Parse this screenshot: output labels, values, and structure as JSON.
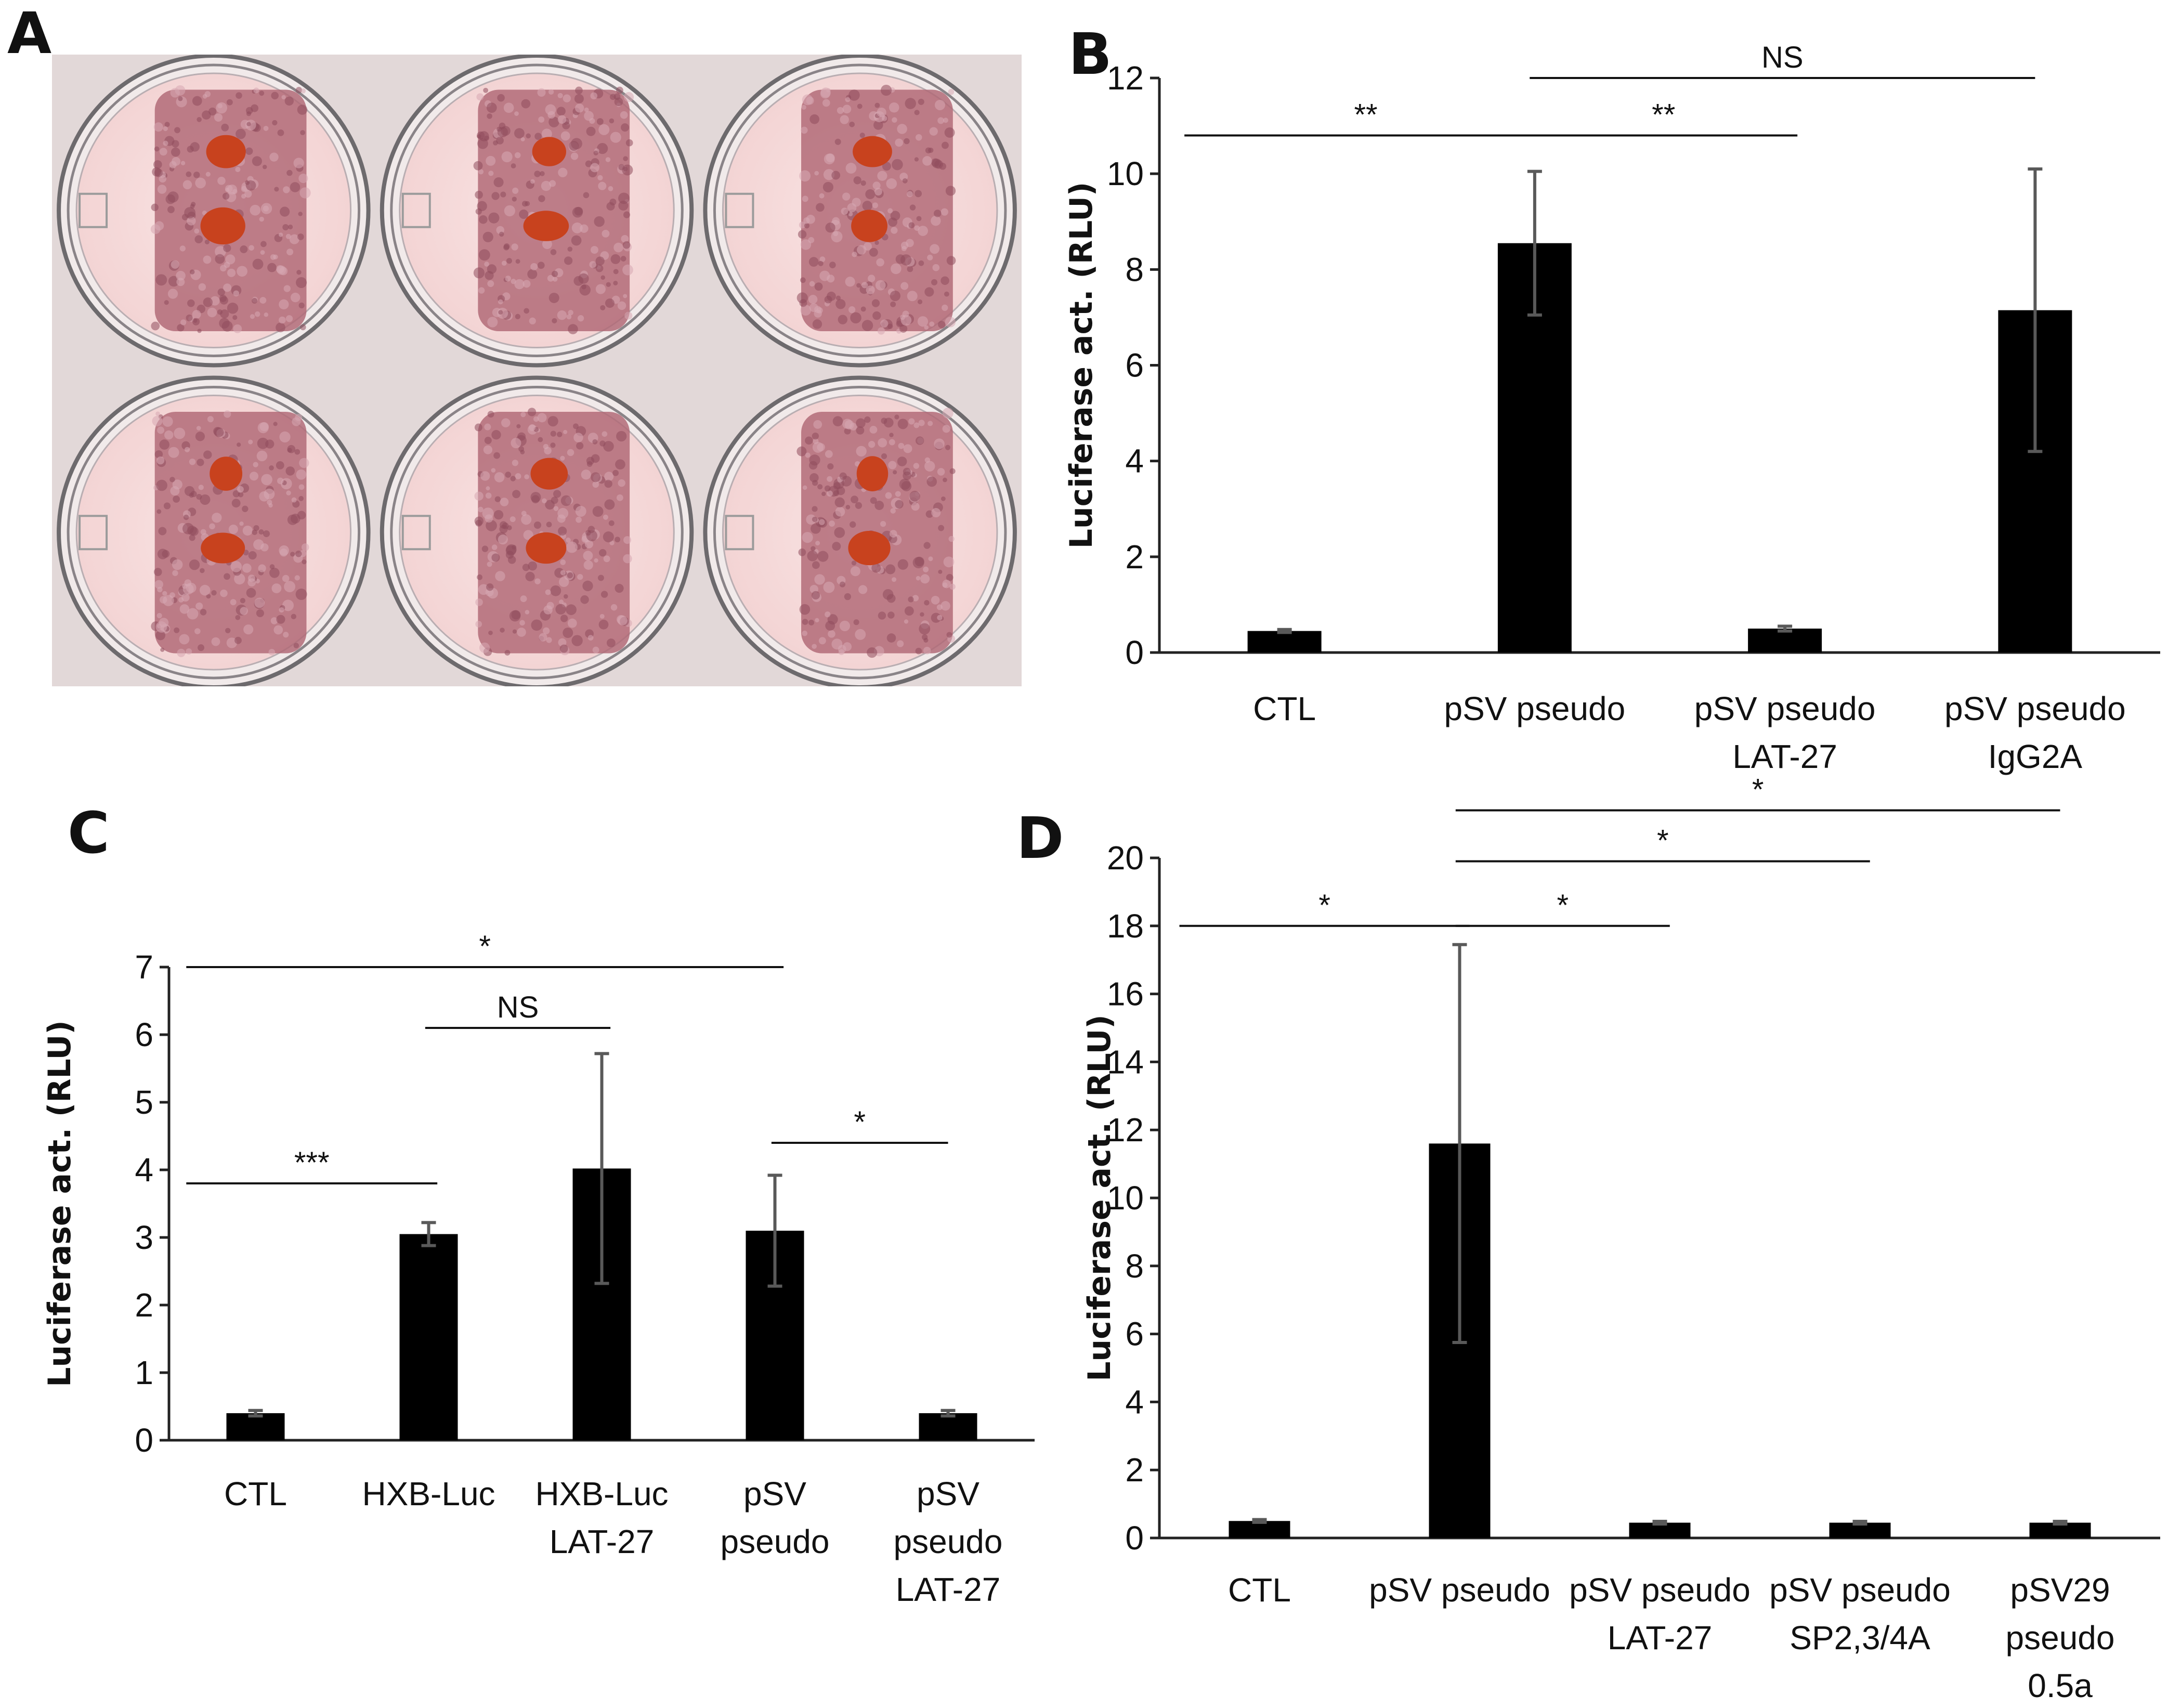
{
  "panels": {
    "A": {
      "letter": "A"
    },
    "B": {
      "letter": "B"
    },
    "C": {
      "letter": "C"
    },
    "D": {
      "letter": "D"
    }
  },
  "plate": {
    "rows": 2,
    "cols": 3,
    "colors": {
      "background": "#e2d8d8",
      "medium": "#f3d4d4",
      "cells": "#b06674",
      "pellet": "#c8421e",
      "rim": "#6d6a6d"
    }
  },
  "chart_data": [
    {
      "panel": "B",
      "type": "bar",
      "ylabel": "Luciferase act. (RLU)",
      "ylim": [
        0,
        12
      ],
      "yticks": [
        0,
        2,
        4,
        6,
        8,
        10,
        12
      ],
      "categories": [
        [
          "CTL"
        ],
        [
          "pSV pseudo"
        ],
        [
          "pSV pseudo",
          "LAT-27"
        ],
        [
          "pSV pseudo",
          "IgG2A"
        ]
      ],
      "values": [
        0.45,
        8.55,
        0.5,
        7.15
      ],
      "errors": [
        0.03,
        1.5,
        0.05,
        2.95
      ],
      "significance": [
        {
          "from": 0,
          "to": 1,
          "label": "**",
          "level": 10.8
        },
        {
          "from": 1,
          "to": 2,
          "label": "**",
          "level": 10.8
        },
        {
          "from": 1,
          "to": 3,
          "label": "NS",
          "level": 12.0
        }
      ]
    },
    {
      "panel": "C",
      "type": "bar",
      "ylabel": "Luciferase act. (RLU)",
      "ylim": [
        0,
        7
      ],
      "yticks": [
        0,
        1,
        2,
        3,
        4,
        5,
        6,
        7
      ],
      "categories": [
        [
          "CTL"
        ],
        [
          "HXB-Luc"
        ],
        [
          "HXB-Luc",
          "LAT-27"
        ],
        [
          "pSV",
          "pseudo"
        ],
        [
          "pSV",
          "pseudo",
          "LAT-27"
        ]
      ],
      "values": [
        0.4,
        3.05,
        4.02,
        3.1,
        0.4
      ],
      "errors": [
        0.04,
        0.17,
        1.7,
        0.82,
        0.04
      ],
      "significance": [
        {
          "from": 0,
          "to": 1,
          "label": "***",
          "level": 3.8
        },
        {
          "from": 1,
          "to": 2,
          "label": "NS",
          "level": 6.1
        },
        {
          "from": 0,
          "to": 3,
          "label": "*",
          "level": 7.0
        },
        {
          "from": 3,
          "to": 4,
          "label": "*",
          "level": 4.4
        }
      ]
    },
    {
      "panel": "D",
      "type": "bar",
      "ylabel": "Luciferase act. (RLU)",
      "ylim": [
        0,
        20
      ],
      "yticks": [
        0,
        2,
        4,
        6,
        8,
        10,
        12,
        14,
        16,
        18,
        20
      ],
      "categories": [
        [
          "CTL"
        ],
        [
          "pSV pseudo"
        ],
        [
          "pSV pseudo",
          "LAT-27"
        ],
        [
          "pSV pseudo",
          "SP2,3/4A"
        ],
        [
          "pSV29",
          "pseudo",
          "0.5a"
        ]
      ],
      "values": [
        0.5,
        11.6,
        0.45,
        0.45,
        0.45
      ],
      "errors": [
        0.04,
        5.85,
        0.04,
        0.04,
        0.04
      ],
      "significance": [
        {
          "from": 0,
          "to": 1,
          "label": "*",
          "level": 18.0
        },
        {
          "from": 1,
          "to": 2,
          "label": "*",
          "level": 18.0
        },
        {
          "from": 1,
          "to": 3,
          "label": "*",
          "level": 19.9
        },
        {
          "from": 1,
          "to": 4,
          "label": "*",
          "level": 21.4
        }
      ]
    }
  ]
}
